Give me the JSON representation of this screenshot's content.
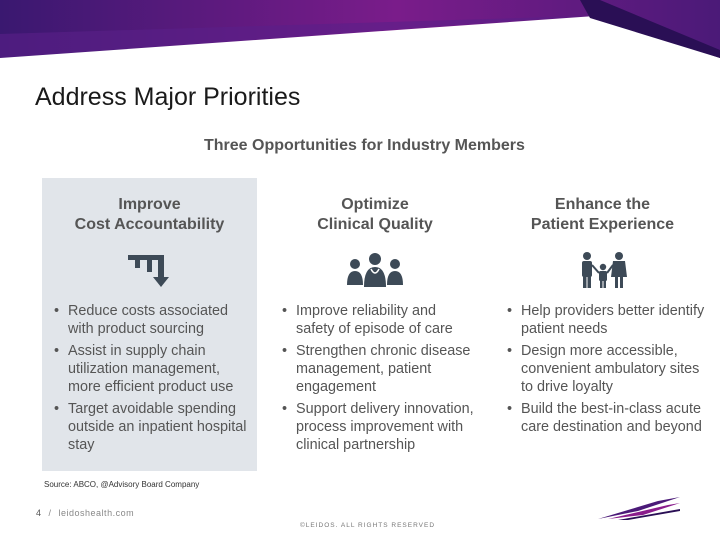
{
  "slide": {
    "title": "Address Major Priorities",
    "graphic_title": "Three Opportunities for Industry Members"
  },
  "columns": [
    {
      "heading": [
        "Improve",
        "Cost Accountability"
      ],
      "icon": "downward-arrow-cost-icon",
      "bullets": [
        "Reduce costs associated with product sourcing",
        "Assist in supply chain utilization management, more efficient product use",
        "Target avoidable spending outside an inpatient hospital stay"
      ]
    },
    {
      "heading": [
        "Optimize",
        "Clinical Quality"
      ],
      "icon": "clinicians-group-icon",
      "bullets": [
        "Improve reliability and safety of episode of care",
        "Strengthen chronic disease management, patient engagement",
        "Support delivery innovation, process improvement with clinical partnership"
      ]
    },
    {
      "heading": [
        "Enhance the",
        "Patient Experience"
      ],
      "icon": "family-icon",
      "bullets": [
        "Help providers better identify patient needs",
        "Design more accessible, convenient ambulatory sites to drive loyalty",
        "Build the best-in-class acute care destination and beyond"
      ]
    }
  ],
  "source": "Source: ABCO, @Advisory Board Company",
  "footer": {
    "page_number": "4",
    "separator": "/",
    "website": "leidoshealth.com",
    "copyright": "©LEIDOS. ALL RIGHTS RESERVED"
  },
  "colors": {
    "banner_purple": "#4b1a78",
    "banner_magenta": "#8a1c8c",
    "highlight_panel": "#e1e5ea",
    "icon_dark": "#3d4a57"
  }
}
